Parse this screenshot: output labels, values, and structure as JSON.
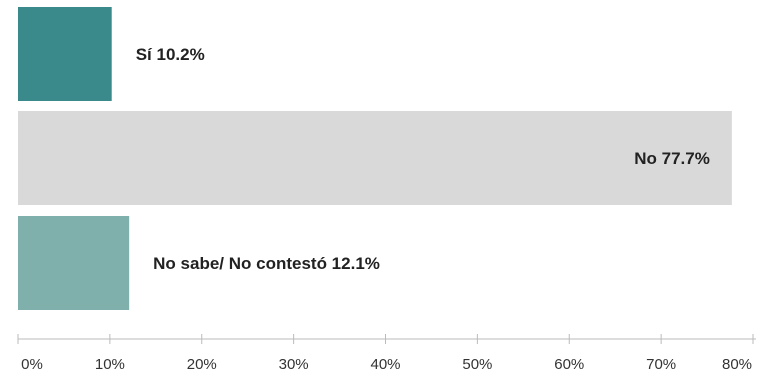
{
  "chart_data": {
    "type": "bar",
    "orientation": "horizontal",
    "categories": [
      "Sí",
      "No",
      "No sabe/ No contestó"
    ],
    "values": [
      10.2,
      77.7,
      12.1
    ],
    "value_labels": [
      "Sí 10.2%",
      "No 77.7%",
      "No sabe/ No contestó 12.1%"
    ],
    "colors": [
      "#3a8a8c",
      "#d9d9d9",
      "#7fb0ab"
    ],
    "xlim": [
      0,
      80
    ],
    "xticks": [
      0,
      10,
      20,
      30,
      40,
      50,
      60,
      70,
      80
    ],
    "xtick_labels": [
      "0%",
      "10%",
      "20%",
      "30%",
      "40%",
      "50%",
      "60%",
      "70%",
      "80%"
    ],
    "grid": false,
    "legend": false,
    "title": "",
    "xlabel": "",
    "ylabel": ""
  }
}
